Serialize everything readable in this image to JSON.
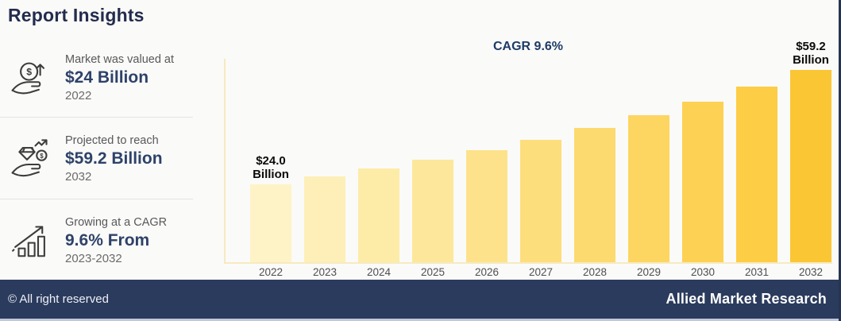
{
  "page": {
    "title": "Report Insights"
  },
  "sidebar": {
    "items": [
      {
        "icon": "hand-coin-growth-icon",
        "label": "Market was valued at",
        "value": "$24 Billion",
        "period": "2022"
      },
      {
        "icon": "hand-diamond-dollar-icon",
        "label": "Projected to reach",
        "value": "$59.2 Billion",
        "period": "2032"
      },
      {
        "icon": "growth-bars-arrow-icon",
        "label": "Growing at a CAGR",
        "value": "9.6% From",
        "period": "2023-2032"
      }
    ]
  },
  "chart": {
    "cagr_label": "CAGR 9.6%"
  },
  "chart_data": {
    "type": "bar",
    "title": "CAGR 9.6%",
    "unit": "USD Billion",
    "categories": [
      "2022",
      "2023",
      "2024",
      "2025",
      "2026",
      "2027",
      "2028",
      "2029",
      "2030",
      "2031",
      "2032"
    ],
    "values": [
      24.0,
      26.3,
      28.8,
      31.5,
      34.4,
      37.7,
      41.3,
      45.2,
      49.4,
      54.1,
      59.2
    ],
    "labeled_points": [
      {
        "index": 0,
        "lines": [
          "$24.0",
          "Billion"
        ]
      },
      {
        "index": 10,
        "lines": [
          "$59.2",
          "Billion"
        ]
      }
    ],
    "bar_colors": [
      "#FDF3C6",
      "#FDEFB7",
      "#FDEBA8",
      "#FDE79A",
      "#FDE28B",
      "#FDDE7D",
      "#FDDA6F",
      "#FDD561",
      "#FDD153",
      "#FDCD45",
      "#FBC634"
    ],
    "ylim": [
      0,
      62
    ],
    "grid": false,
    "legend": false,
    "axis_color": "#F7EABF"
  },
  "footer": {
    "copyright": "© All right reserved",
    "brand": "Allied Market Research"
  },
  "colors": {
    "navy": "#2B3B5D",
    "title_navy": "#232C4E",
    "value_navy": "#2E4269",
    "gold": "#FBC634",
    "label_gray": "#58585A"
  }
}
